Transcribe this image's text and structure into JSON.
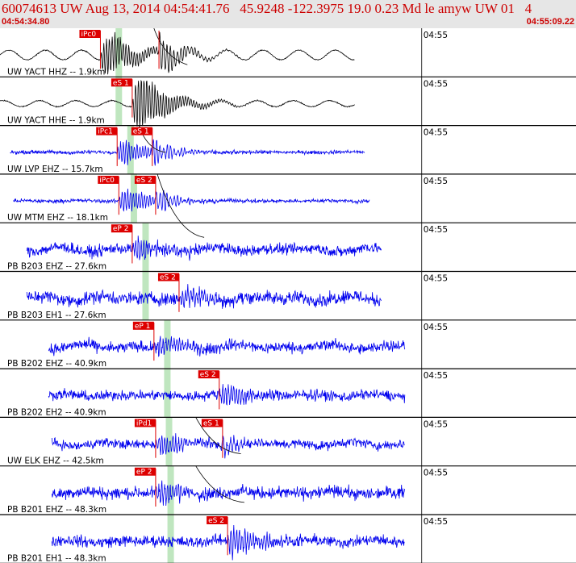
{
  "header": {
    "title": "60074613 UW Aug 13, 2014 04:54:41.76   45.9248 -122.3975 19.0 0.23 Md le amyw UW 01   4",
    "start_time": "04:54:34.80",
    "end_time": "04:55:09.22"
  },
  "chart_data": {
    "type": "line",
    "title": "60074613 UW Aug 13, 2014 04:54:41.76   45.9248 -122.3975 19.0 0.23 Md le amyw UW 01   4",
    "xlabel": "",
    "ylabel": "",
    "x_unit": "seconds after 04:54:34.80",
    "xlim": [
      0,
      34.42
    ],
    "tick_label": "04:55",
    "tick_time": 25.2,
    "colors": {
      "pick": "#dd0000",
      "band": "#bfe6bf",
      "grid": "#000000"
    },
    "series": [
      {
        "name": "UW YACT HHZ -- 1.9km",
        "color": "#000000",
        "start": 0.0,
        "end": 21.2,
        "amp": 0.55,
        "noise": 0.05,
        "signal": 3.8,
        "style": "wave",
        "band": 7.1,
        "picks": [
          {
            "label": "iPc0",
            "t": 6.0
          },
          {
            "label": "",
            "t": 9.5
          }
        ]
      },
      {
        "name": "UW YACT HHE -- 1.9km",
        "color": "#000000",
        "start": 0.0,
        "end": 21.2,
        "amp": 0.35,
        "noise": 0.05,
        "signal": 5.2,
        "style": "wave",
        "band": 7.1,
        "picks": [
          {
            "label": "eS 1",
            "t": 7.9
          }
        ]
      },
      {
        "name": "UW LVP EHZ -- 15.7km",
        "color": "#0000ee",
        "start": 0.6,
        "end": 21.8,
        "amp": 0.05,
        "noise": 0.18,
        "signal": 2.2,
        "style": "flat",
        "band": 7.8,
        "picks": [
          {
            "label": "iPc1",
            "t": 7.0
          },
          {
            "label": "eS 1",
            "t": 9.1
          }
        ]
      },
      {
        "name": "UW MTM EHZ -- 18.1km",
        "color": "#0000ee",
        "start": 0.8,
        "end": 22.1,
        "amp": 0.05,
        "noise": 0.18,
        "signal": 2.2,
        "style": "flat",
        "band": 8.0,
        "picks": [
          {
            "label": "iPc0",
            "t": 7.1
          },
          {
            "label": "eS 2",
            "t": 9.3
          }
        ]
      },
      {
        "name": "PB B203 EHZ -- 27.6km",
        "color": "#0000ee",
        "start": 1.6,
        "end": 22.8,
        "amp": 0.3,
        "noise": 0.55,
        "signal": 1.6,
        "style": "noisy",
        "band": 8.7,
        "picks": [
          {
            "label": "eP 2",
            "t": 7.9
          }
        ]
      },
      {
        "name": "PB B203 EH1 -- 27.6km",
        "color": "#0000ee",
        "start": 1.6,
        "end": 22.8,
        "amp": 0.3,
        "noise": 0.65,
        "signal": 1.6,
        "style": "noisy",
        "band": 8.7,
        "picks": [
          {
            "label": "eS 2",
            "t": 10.7
          }
        ]
      },
      {
        "name": "PB B202 EHZ -- 40.9km",
        "color": "#0000ee",
        "start": 2.9,
        "end": 24.2,
        "amp": 0.3,
        "noise": 0.55,
        "signal": 1.6,
        "style": "noisy",
        "band": 10.0,
        "picks": [
          {
            "label": "eP 1",
            "t": 9.2
          }
        ]
      },
      {
        "name": "PB B202 EH2 -- 40.9km",
        "color": "#0000ee",
        "start": 2.9,
        "end": 24.2,
        "amp": 0.15,
        "noise": 0.5,
        "signal": 2.0,
        "style": "noisy",
        "band": 10.0,
        "picks": [
          {
            "label": "eS 2",
            "t": 13.1
          }
        ]
      },
      {
        "name": "UW ELK EHZ -- 42.5km",
        "color": "#0000ee",
        "start": 3.1,
        "end": 24.2,
        "amp": 0.25,
        "noise": 0.45,
        "signal": 1.7,
        "style": "noisy",
        "band": 10.1,
        "picks": [
          {
            "label": "iPd1",
            "t": 9.3
          },
          {
            "label": "eS 1",
            "t": 13.3
          }
        ]
      },
      {
        "name": "PB B201 EHZ -- 48.3km",
        "color": "#0000ee",
        "start": 3.1,
        "end": 24.2,
        "amp": 0.15,
        "noise": 0.6,
        "signal": 1.6,
        "style": "noisy",
        "band": 10.2,
        "picks": [
          {
            "label": "eP 2",
            "t": 9.3
          }
        ]
      },
      {
        "name": "PB B201 EH1 -- 48.3km",
        "color": "#0000ee",
        "start": 3.1,
        "end": 24.2,
        "amp": 0.15,
        "noise": 0.55,
        "signal": 2.6,
        "style": "noisy",
        "band": 10.2,
        "picks": [
          {
            "label": "eS 2",
            "t": 13.6
          }
        ]
      }
    ]
  }
}
